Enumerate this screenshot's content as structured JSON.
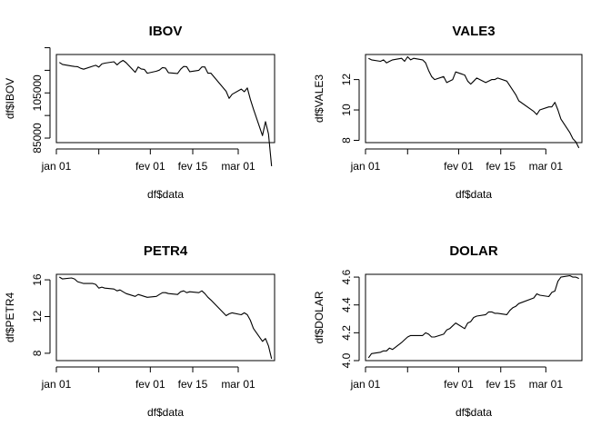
{
  "chart_data": [
    {
      "type": "line",
      "title": "IBOV",
      "xlabel": "df$data",
      "ylabel": "df$IBOV",
      "x_ticks": [
        "jan 01",
        "",
        "fev 01",
        "fev 15",
        "mar 01"
      ],
      "y_ticks": [
        "85000",
        "",
        "105000",
        "",
        ""
      ],
      "y_tick_values": [
        85000,
        95000,
        105000,
        115000,
        125000
      ],
      "xlim": [
        "2020-01-01",
        "2020-03-13"
      ],
      "ylim": [
        83000,
        122000
      ],
      "x": [
        "2020-01-02",
        "2020-01-03",
        "2020-01-06",
        "2020-01-07",
        "2020-01-08",
        "2020-01-09",
        "2020-01-10",
        "2020-01-13",
        "2020-01-14",
        "2020-01-15",
        "2020-01-16",
        "2020-01-17",
        "2020-01-20",
        "2020-01-21",
        "2020-01-22",
        "2020-01-23",
        "2020-01-24",
        "2020-01-27",
        "2020-01-28",
        "2020-01-29",
        "2020-01-30",
        "2020-01-31",
        "2020-02-03",
        "2020-02-04",
        "2020-02-05",
        "2020-02-06",
        "2020-02-07",
        "2020-02-10",
        "2020-02-11",
        "2020-02-12",
        "2020-02-13",
        "2020-02-14",
        "2020-02-17",
        "2020-02-18",
        "2020-02-19",
        "2020-02-20",
        "2020-02-21",
        "2020-02-26",
        "2020-02-27",
        "2020-02-28",
        "2020-03-02",
        "2020-03-03",
        "2020-03-04",
        "2020-03-05",
        "2020-03-06",
        "2020-03-09",
        "2020-03-10",
        "2020-03-11",
        "2020-03-12"
      ],
      "y": [
        118500,
        117600,
        116900,
        116700,
        116600,
        115900,
        115500,
        116800,
        117200,
        116400,
        117800,
        118200,
        118800,
        117400,
        118600,
        119400,
        118400,
        114100,
        116500,
        115600,
        115400,
        113700,
        114600,
        115100,
        116200,
        116000,
        113900,
        113600,
        115500,
        116700,
        116600,
        114400,
        115000,
        116500,
        116500,
        113700,
        113700,
        105700,
        102600,
        104400,
        106700,
        105500,
        107200,
        102200,
        97900,
        86100,
        92300,
        86800,
        72600
      ]
    },
    {
      "type": "line",
      "title": "VALE3",
      "xlabel": "df$data",
      "ylabel": "df$VALE3",
      "x_ticks": [
        "jan 01",
        "",
        "fev 01",
        "fev 15",
        "mar 01"
      ],
      "y_ticks": [
        "8",
        "10",
        "12"
      ],
      "y_tick_values": [
        8,
        10,
        12
      ],
      "xlim": [
        "2020-01-01",
        "2020-03-13"
      ],
      "ylim": [
        7.85,
        13.65
      ],
      "x": [
        "2020-01-02",
        "2020-01-03",
        "2020-01-06",
        "2020-01-07",
        "2020-01-08",
        "2020-01-09",
        "2020-01-10",
        "2020-01-13",
        "2020-01-14",
        "2020-01-15",
        "2020-01-16",
        "2020-01-17",
        "2020-01-20",
        "2020-01-21",
        "2020-01-22",
        "2020-01-23",
        "2020-01-24",
        "2020-01-27",
        "2020-01-28",
        "2020-01-29",
        "2020-01-30",
        "2020-01-31",
        "2020-02-03",
        "2020-02-04",
        "2020-02-05",
        "2020-02-06",
        "2020-02-07",
        "2020-02-10",
        "2020-02-11",
        "2020-02-12",
        "2020-02-13",
        "2020-02-14",
        "2020-02-17",
        "2020-02-18",
        "2020-02-19",
        "2020-02-20",
        "2020-02-21",
        "2020-02-26",
        "2020-02-27",
        "2020-02-28",
        "2020-03-02",
        "2020-03-03",
        "2020-03-04",
        "2020-03-05",
        "2020-03-06",
        "2020-03-09",
        "2020-03-10",
        "2020-03-11",
        "2020-03-12"
      ],
      "y": [
        13.4,
        13.3,
        13.2,
        13.3,
        13.1,
        13.2,
        13.3,
        13.4,
        13.2,
        13.5,
        13.3,
        13.4,
        13.3,
        13.1,
        12.6,
        12.2,
        12.0,
        12.2,
        11.8,
        11.9,
        12.0,
        12.5,
        12.3,
        11.9,
        11.7,
        11.9,
        12.1,
        11.8,
        11.9,
        12.0,
        12.0,
        12.1,
        11.9,
        11.6,
        11.3,
        11.0,
        10.6,
        9.9,
        9.7,
        10.0,
        10.2,
        10.2,
        10.5,
        10.0,
        9.4,
        8.5,
        8.1,
        7.9,
        7.5
      ]
    },
    {
      "type": "line",
      "title": "PETR4",
      "xlabel": "df$data",
      "ylabel": "df$PETR4",
      "x_ticks": [
        "jan 01",
        "",
        "fev 01",
        "fev 15",
        "mar 01"
      ],
      "y_ticks": [
        "8",
        "12",
        "16"
      ],
      "y_tick_values": [
        8,
        12,
        16
      ],
      "xlim": [
        "2020-01-01",
        "2020-03-13"
      ],
      "ylim": [
        7.2,
        16.6
      ],
      "x": [
        "2020-01-02",
        "2020-01-03",
        "2020-01-06",
        "2020-01-07",
        "2020-01-08",
        "2020-01-09",
        "2020-01-10",
        "2020-01-13",
        "2020-01-14",
        "2020-01-15",
        "2020-01-16",
        "2020-01-17",
        "2020-01-20",
        "2020-01-21",
        "2020-01-22",
        "2020-01-23",
        "2020-01-24",
        "2020-01-27",
        "2020-01-28",
        "2020-01-29",
        "2020-01-30",
        "2020-01-31",
        "2020-02-03",
        "2020-02-04",
        "2020-02-05",
        "2020-02-06",
        "2020-02-07",
        "2020-02-10",
        "2020-02-11",
        "2020-02-12",
        "2020-02-13",
        "2020-02-14",
        "2020-02-17",
        "2020-02-18",
        "2020-02-19",
        "2020-02-20",
        "2020-02-21",
        "2020-02-26",
        "2020-02-27",
        "2020-02-28",
        "2020-03-02",
        "2020-03-03",
        "2020-03-04",
        "2020-03-05",
        "2020-03-06",
        "2020-03-09",
        "2020-03-10",
        "2020-03-11",
        "2020-03-12"
      ],
      "y": [
        16.3,
        16.1,
        16.2,
        16.1,
        15.8,
        15.7,
        15.6,
        15.6,
        15.5,
        15.1,
        15.2,
        15.1,
        15.0,
        14.8,
        14.9,
        14.7,
        14.5,
        14.2,
        14.4,
        14.3,
        14.2,
        14.1,
        14.2,
        14.4,
        14.6,
        14.6,
        14.5,
        14.4,
        14.7,
        14.8,
        14.6,
        14.7,
        14.6,
        14.8,
        14.5,
        14.1,
        13.8,
        12.1,
        12.3,
        12.4,
        12.2,
        12.4,
        12.2,
        11.6,
        10.7,
        9.3,
        9.6,
        8.8,
        7.4
      ]
    },
    {
      "type": "line",
      "title": "DOLAR",
      "xlabel": "df$data",
      "ylabel": "df$DOLAR",
      "x_ticks": [
        "jan 01",
        "",
        "fev 01",
        "fev 15",
        "mar 01"
      ],
      "y_ticks": [
        "4.0",
        "4.2",
        "4.4",
        "4.6"
      ],
      "y_tick_values": [
        4.0,
        4.2,
        4.4,
        4.6
      ],
      "xlim": [
        "2020-01-01",
        "2020-03-13"
      ],
      "ylim": [
        4.0,
        4.62
      ],
      "x": [
        "2020-01-02",
        "2020-01-03",
        "2020-01-06",
        "2020-01-07",
        "2020-01-08",
        "2020-01-09",
        "2020-01-10",
        "2020-01-13",
        "2020-01-14",
        "2020-01-15",
        "2020-01-16",
        "2020-01-17",
        "2020-01-20",
        "2020-01-21",
        "2020-01-22",
        "2020-01-23",
        "2020-01-24",
        "2020-01-27",
        "2020-01-28",
        "2020-01-29",
        "2020-01-30",
        "2020-01-31",
        "2020-02-03",
        "2020-02-04",
        "2020-02-05",
        "2020-02-06",
        "2020-02-07",
        "2020-02-10",
        "2020-02-11",
        "2020-02-12",
        "2020-02-13",
        "2020-02-14",
        "2020-02-17",
        "2020-02-18",
        "2020-02-19",
        "2020-02-20",
        "2020-02-21",
        "2020-02-26",
        "2020-02-27",
        "2020-02-28",
        "2020-03-02",
        "2020-03-03",
        "2020-03-04",
        "2020-03-05",
        "2020-03-06",
        "2020-03-09",
        "2020-03-10",
        "2020-03-11",
        "2020-03-12"
      ],
      "y": [
        4.02,
        4.05,
        4.06,
        4.07,
        4.07,
        4.09,
        4.08,
        4.13,
        4.15,
        4.17,
        4.18,
        4.18,
        4.18,
        4.2,
        4.19,
        4.17,
        4.17,
        4.19,
        4.22,
        4.23,
        4.25,
        4.27,
        4.23,
        4.27,
        4.28,
        4.31,
        4.32,
        4.33,
        4.35,
        4.35,
        4.34,
        4.34,
        4.33,
        4.36,
        4.38,
        4.39,
        4.41,
        4.45,
        4.48,
        4.47,
        4.46,
        4.49,
        4.5,
        4.57,
        4.6,
        4.61,
        4.6,
        4.6,
        4.59
      ]
    }
  ]
}
